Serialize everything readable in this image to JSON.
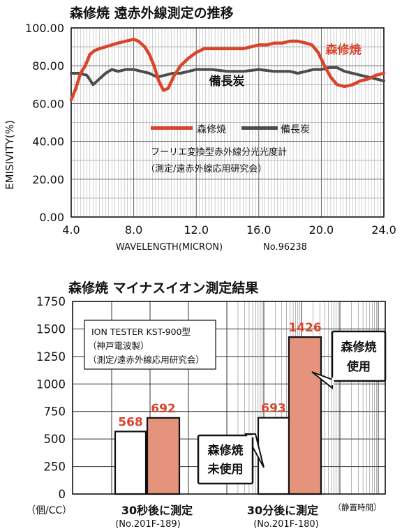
{
  "chart_data": [
    {
      "type": "line",
      "title": "森修焼 遠赤外線測定の推移",
      "xlabel": "WAVELENGTH(MICRON)",
      "x_note": "No.96238",
      "ylabel": "EMISIVITY(%)",
      "xlim": [
        4.0,
        24.0
      ],
      "ylim": [
        0,
        100
      ],
      "x_ticks": [
        "4.0",
        "8.0",
        "12.0",
        "16.0",
        "20.0",
        "24.0"
      ],
      "y_ticks": [
        "0.00",
        "20.00",
        "40.00",
        "60.00",
        "80.00",
        "100.00"
      ],
      "grid": true,
      "legend": {
        "position": "center",
        "entries": [
          "森修焼",
          "備長炭"
        ]
      },
      "note_lines": [
        "フーリエ変換型赤外線分光光度計",
        "（測定/遠赤外線応用研究会）"
      ],
      "series": [
        {
          "name": "森修焼",
          "color": "#d9452a",
          "label": "森修焼",
          "x": [
            4.0,
            4.3,
            4.6,
            4.9,
            5.0,
            5.2,
            5.5,
            5.8,
            6.2,
            6.6,
            7.0,
            7.5,
            8.0,
            8.3,
            8.7,
            9.0,
            9.3,
            9.6,
            9.9,
            10.2,
            10.6,
            11.0,
            11.5,
            12.0,
            12.5,
            13.0,
            14.0,
            15.0,
            16.0,
            16.5,
            17.0,
            17.5,
            18.0,
            18.5,
            19.0,
            19.4,
            19.8,
            20.2,
            20.6,
            21.0,
            21.5,
            22.0,
            22.5,
            23.0,
            23.5,
            24.0
          ],
          "y": [
            62,
            68,
            76,
            80,
            82,
            86,
            88,
            89,
            90,
            91,
            92,
            93,
            94,
            93,
            90,
            86,
            80,
            72,
            67,
            68,
            75,
            80,
            84,
            87,
            89,
            89,
            89,
            89,
            91,
            91,
            92,
            92,
            93,
            93,
            92,
            91,
            87,
            80,
            74,
            70,
            69,
            70,
            72,
            73,
            75,
            76
          ]
        },
        {
          "name": "備長炭",
          "color": "#4d4d4d",
          "label": "備長炭",
          "x": [
            4.0,
            4.5,
            5.0,
            5.4,
            5.8,
            6.2,
            6.6,
            7.0,
            7.5,
            8.0,
            8.5,
            9.0,
            9.5,
            10.0,
            10.5,
            11.0,
            11.5,
            12.0,
            12.5,
            13.0,
            14.0,
            15.0,
            16.0,
            17.0,
            18.0,
            18.5,
            19.0,
            19.5,
            20.0,
            20.5,
            21.0,
            21.5,
            22.0,
            22.5,
            23.0,
            23.5,
            24.0
          ],
          "y": [
            76,
            76,
            75,
            70,
            73,
            76,
            78,
            77,
            78,
            78,
            77,
            76,
            74,
            75,
            76,
            76,
            77,
            78,
            78,
            78,
            77,
            77,
            78,
            77,
            77,
            76,
            77,
            78,
            78,
            79,
            79,
            77,
            76,
            75,
            74,
            73,
            72
          ]
        }
      ]
    },
    {
      "type": "bar",
      "title": "森修焼 マイナスイオン測定結果",
      "ylabel": "（個/CC）",
      "ylim": [
        0,
        1750
      ],
      "y_ticks": [
        "0",
        "250",
        "500",
        "750",
        "1000",
        "1250",
        "1500",
        "1750"
      ],
      "grid": true,
      "note_lines": [
        "ION TESTER KST-900型",
        "（神戸電波製）",
        "（測定/遠赤外線応用研究会）"
      ],
      "categories": [
        {
          "label": "30秒後に測定",
          "sublabel": "(No.201F-189)"
        },
        {
          "label": "30分後に測定",
          "sublabel": "(No.201F-180)"
        }
      ],
      "category_note": "（静置時間）",
      "series": [
        {
          "name": "森修焼未使用",
          "callout": [
            "森修焼",
            "未使用"
          ],
          "color": "#ffffff",
          "values": [
            568,
            693
          ],
          "value_labels": [
            "568",
            "693"
          ]
        },
        {
          "name": "森修焼使用",
          "callout": [
            "森修焼",
            "使用"
          ],
          "color": "#e5937c",
          "values": [
            692,
            1426
          ],
          "value_labels": [
            "692",
            "1426"
          ]
        }
      ]
    }
  ]
}
